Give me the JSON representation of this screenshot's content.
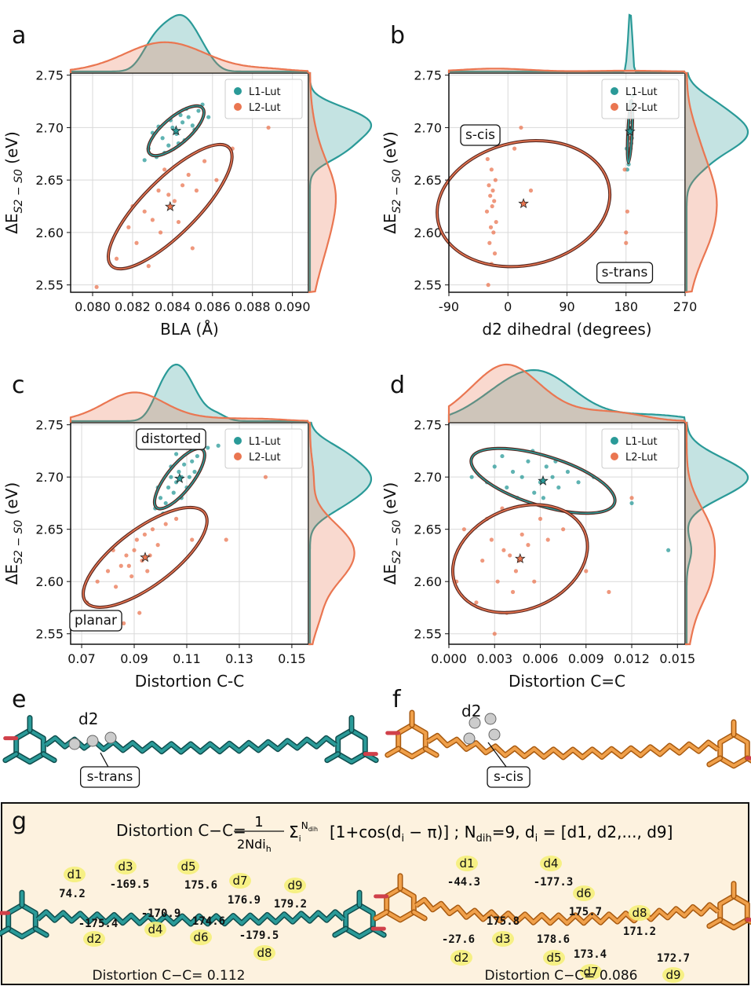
{
  "chart_data": [
    {
      "type": "scatter",
      "panel": "a",
      "x_label": "BLA (Å)",
      "y_label": [
        "ΔE",
        "S2 − S0",
        " (eV)"
      ],
      "xlim": [
        0.0789,
        0.0908
      ],
      "ylim": [
        2.543,
        2.752
      ],
      "xticks": [
        {
          "value": 0.08,
          "label": "0.080"
        },
        0.082,
        0.084,
        0.086,
        0.088,
        {
          "value": 0.09,
          "label": "0.090"
        }
      ],
      "yticks": [
        2.55,
        {
          "value": 2.6,
          "label": "2.60"
        },
        2.65,
        {
          "value": 2.7,
          "label": "2.70"
        },
        2.75
      ],
      "grid": true,
      "legend": "upper right",
      "series": [
        {
          "name": "L1-Lut",
          "color": "#2a9a98",
          "x": [
            0.0828,
            0.0832,
            0.0835,
            0.0838,
            0.084,
            0.0842,
            0.0845,
            0.0848,
            0.085,
            0.0853,
            0.0836,
            0.0844,
            0.083,
            0.0855,
            0.0846,
            0.0839,
            0.0851,
            0.0833,
            0.0847,
            0.0858,
            0.0826,
            0.0843
          ],
          "y": [
            2.68,
            2.672,
            2.69,
            2.683,
            2.7,
            2.694,
            2.705,
            2.71,
            2.702,
            2.716,
            2.676,
            2.712,
            2.695,
            2.722,
            2.688,
            2.707,
            2.698,
            2.701,
            2.718,
            2.71,
            2.669,
            2.685
          ]
        },
        {
          "name": "L2-Lut",
          "color": "#ea7651",
          "x": [
            0.0802,
            0.0812,
            0.0818,
            0.0822,
            0.0826,
            0.083,
            0.0834,
            0.0838,
            0.0841,
            0.0845,
            0.0848,
            0.0852,
            0.0856,
            0.0862,
            0.087,
            0.0888,
            0.0828,
            0.0836,
            0.0843,
            0.082,
            0.085,
            0.0833
          ],
          "y": [
            2.548,
            2.575,
            2.605,
            2.59,
            2.62,
            2.612,
            2.6,
            2.636,
            2.63,
            2.645,
            2.655,
            2.64,
            2.668,
            2.65,
            2.68,
            2.7,
            2.568,
            2.66,
            2.61,
            2.625,
            2.585,
            2.64
          ]
        }
      ],
      "annotations": []
    },
    {
      "type": "scatter",
      "panel": "b",
      "x_label": "d2 dihedral (degrees)",
      "y_label": [
        "ΔE",
        "S2 − S0",
        " (eV)"
      ],
      "xlim": [
        -90,
        270
      ],
      "ylim": [
        2.543,
        2.752
      ],
      "xticks": [
        -90,
        0,
        90,
        180,
        270
      ],
      "yticks": [
        2.55,
        {
          "value": 2.6,
          "label": "2.60"
        },
        2.65,
        {
          "value": 2.7,
          "label": "2.70"
        },
        2.75
      ],
      "grid": true,
      "legend": "upper right",
      "series": [
        {
          "name": "L1-Lut",
          "color": "#2a9a98",
          "x": [
            182,
            184,
            185,
            186,
            187,
            188,
            189,
            190,
            183,
            186,
            188,
            185,
            187,
            184,
            189,
            186,
            181,
            190,
            187,
            185
          ],
          "y": [
            2.66,
            2.7,
            2.69,
            2.72,
            2.68,
            2.71,
            2.7,
            2.73,
            2.675,
            2.695,
            2.685,
            2.705,
            2.715,
            2.665,
            2.69,
            2.7,
            2.68,
            2.71,
            2.725,
            2.69
          ]
        },
        {
          "name": "L2-Lut",
          "color": "#ea7651",
          "x": [
            -30,
            -25,
            -20,
            -28,
            -22,
            -26,
            -18,
            -32,
            -24,
            -21,
            -27,
            -23,
            -29,
            -19,
            -25,
            -31,
            10,
            20,
            35,
            180,
            182,
            178,
            185,
            180
          ],
          "y": [
            2.55,
            2.57,
            2.58,
            2.59,
            2.6,
            2.605,
            2.61,
            2.62,
            2.625,
            2.63,
            2.635,
            2.64,
            2.645,
            2.65,
            2.66,
            2.67,
            2.68,
            2.7,
            2.64,
            2.59,
            2.62,
            2.66,
            2.69,
            2.6
          ]
        }
      ],
      "annotations": [
        "s-cis",
        "s-trans"
      ]
    },
    {
      "type": "scatter",
      "panel": "c",
      "x_label": "Distortion C-C",
      "y_label": [
        "ΔE",
        "S2 − S0",
        " (eV)"
      ],
      "xlim": [
        0.0658,
        0.1563
      ],
      "ylim": [
        2.54,
        2.752
      ],
      "xticks": [
        0.07,
        0.09,
        0.11,
        0.13,
        0.15
      ],
      "yticks": [
        2.55,
        {
          "value": 2.6,
          "label": "2.60"
        },
        2.65,
        {
          "value": 2.7,
          "label": "2.70"
        },
        2.75
      ],
      "grid": true,
      "legend": "upper right",
      "series": [
        {
          "name": "L1-Lut",
          "color": "#2a9a98",
          "x": [
            0.098,
            0.1,
            0.102,
            0.103,
            0.104,
            0.105,
            0.106,
            0.107,
            0.108,
            0.109,
            0.11,
            0.112,
            0.114,
            0.118,
            0.122,
            0.101,
            0.104,
            0.108,
            0.111,
            0.099,
            0.106,
            0.113
          ],
          "y": [
            2.67,
            2.68,
            2.675,
            2.69,
            2.7,
            2.685,
            2.695,
            2.705,
            2.7,
            2.712,
            2.69,
            2.715,
            2.72,
            2.728,
            2.73,
            2.665,
            2.71,
            2.68,
            2.7,
            2.69,
            2.722,
            2.705
          ]
        },
        {
          "name": "L2-Lut",
          "color": "#ea7651",
          "x": [
            0.072,
            0.076,
            0.08,
            0.083,
            0.085,
            0.087,
            0.089,
            0.09,
            0.091,
            0.093,
            0.094,
            0.095,
            0.097,
            0.099,
            0.102,
            0.106,
            0.112,
            0.125,
            0.14,
            0.086,
            0.092,
            0.096,
            0.082,
            0.088
          ],
          "y": [
            2.58,
            2.6,
            2.61,
            2.595,
            2.615,
            2.625,
            2.605,
            2.63,
            2.64,
            2.62,
            2.645,
            2.61,
            2.65,
            2.635,
            2.655,
            2.66,
            2.64,
            2.64,
            2.7,
            2.56,
            2.57,
            2.625,
            2.63,
            2.615
          ]
        }
      ],
      "annotations": [
        "distorted",
        "planar"
      ]
    },
    {
      "type": "scatter",
      "panel": "d",
      "x_label": "Distortion C=C",
      "y_label": [
        "ΔE",
        "S2 − S0",
        " (eV)"
      ],
      "xlim": [
        0,
        0.0155
      ],
      "ylim": [
        2.54,
        2.752
      ],
      "xticks": [
        {
          "value": 0,
          "label": "0.000"
        },
        0.003,
        0.006,
        0.009,
        0.012,
        0.015
      ],
      "yticks": [
        2.55,
        {
          "value": 2.6,
          "label": "2.60"
        },
        2.65,
        {
          "value": 2.7,
          "label": "2.70"
        },
        2.75
      ],
      "grid": true,
      "legend": "upper right",
      "series": [
        {
          "name": "L1-Lut",
          "color": "#2a9a98",
          "x": [
            0.0015,
            0.0025,
            0.003,
            0.0038,
            0.0042,
            0.0048,
            0.0052,
            0.0056,
            0.006,
            0.0064,
            0.0068,
            0.0072,
            0.0078,
            0.0085,
            0.0095,
            0.012,
            0.0035,
            0.0055,
            0.0062,
            0.0045,
            0.007,
            0.0144
          ],
          "y": [
            2.7,
            2.695,
            2.71,
            2.69,
            2.705,
            2.7,
            2.715,
            2.685,
            2.695,
            2.71,
            2.7,
            2.69,
            2.705,
            2.695,
            2.7,
            2.675,
            2.72,
            2.725,
            2.68,
            2.68,
            2.715,
            2.63
          ]
        },
        {
          "name": "L2-Lut",
          "color": "#ea7651",
          "x": [
            0.0005,
            0.001,
            0.0018,
            0.0022,
            0.0028,
            0.0032,
            0.0036,
            0.004,
            0.0044,
            0.0048,
            0.0052,
            0.0056,
            0.006,
            0.0065,
            0.0075,
            0.009,
            0.0105,
            0.012,
            0.003,
            0.0038,
            0.0042,
            0.0025,
            0.0046,
            0.0035
          ],
          "y": [
            2.6,
            2.65,
            2.58,
            2.62,
            2.64,
            2.6,
            2.63,
            2.625,
            2.61,
            2.645,
            2.635,
            2.6,
            2.66,
            2.64,
            2.65,
            2.61,
            2.59,
            2.68,
            2.55,
            2.57,
            2.59,
            2.66,
            2.62,
            2.67
          ]
        }
      ],
      "annotations": []
    }
  ],
  "structures": {
    "e": {
      "panel": "e",
      "dihedral": "d2",
      "label": "s-trans"
    },
    "f": {
      "panel": "f",
      "dihedral": "d2",
      "label": "s-cis"
    }
  },
  "panel_g": {
    "panel": "g",
    "formula": {
      "lhs": "Distortion C−C=",
      "numerator": "1",
      "denominator": "2Ndi",
      "denominator_sub": "h",
      "sum": "Σ",
      "sum_sub": "i",
      "sum_sup": "N",
      "sum_sup_sub": "dih",
      "body": "[1+cos(d",
      "body_sub": "i",
      "body_end": " − π)] ; N",
      "n_sub": "dih",
      "n_val": "=9,  d",
      "d_sub": "i",
      "list": " = [d1, d2,..., d9]"
    },
    "molecules": [
      {
        "dihedrals": [
          "d1",
          "d2",
          "d3",
          "d4",
          "d5",
          "d6",
          "d7",
          "d8",
          "d9"
        ],
        "angles": [
          "74.2",
          "-175.4",
          "-169.5",
          "-170.9",
          "175.6",
          "174.6",
          "176.9",
          "-179.5",
          "179.2"
        ],
        "distortion_label": "Distortion C−C= ",
        "distortion": "0.112"
      },
      {
        "dihedrals": [
          "d1",
          "d2",
          "d3",
          "d4",
          "d5",
          "d6",
          "d7",
          "d8",
          "d9"
        ],
        "angles": [
          "-44.3",
          "-27.6",
          "175.8",
          "-177.3",
          "178.6",
          "175.7",
          "173.4",
          "171.2",
          "172.7"
        ],
        "distortion_label": "Distortion C−C= ",
        "distortion": "0.086"
      }
    ]
  }
}
